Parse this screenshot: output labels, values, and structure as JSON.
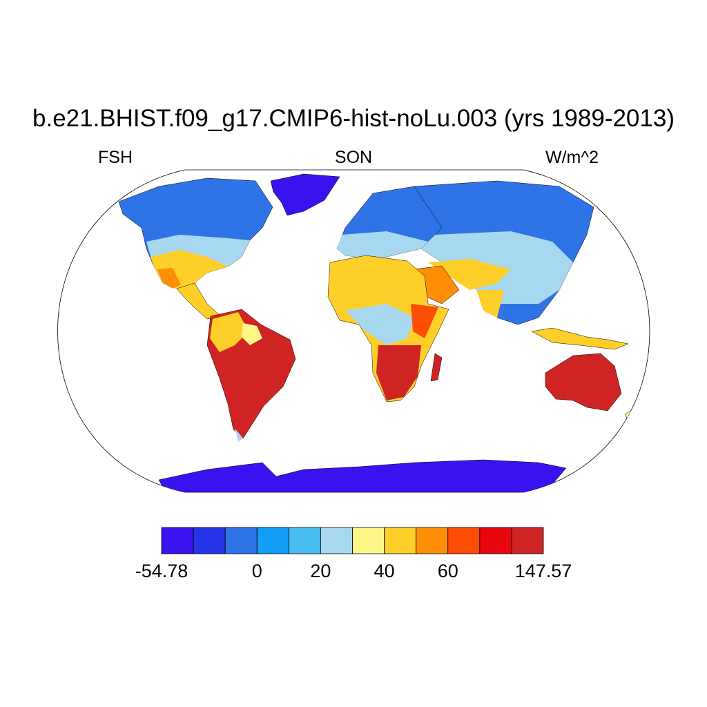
{
  "title": "b.e21.BHIST.f09_g17.CMIP6-hist-noLu.003 (yrs 1989-2013)",
  "subtitle_left": "FSH",
  "subtitle_center": "SON",
  "subtitle_right": "W/m^2",
  "colorbar": {
    "colors": [
      "#3a12f0",
      "#2434e6",
      "#2f74e6",
      "#129df7",
      "#48bdf0",
      "#a8d8f0",
      "#fff68a",
      "#fdcf28",
      "#fd8e05",
      "#fd4d05",
      "#e8070d",
      "#d02424"
    ],
    "tick_labels": [
      "-54.78",
      "0",
      "20",
      "40",
      "60",
      "147.57"
    ],
    "tick_index": [
      0,
      3,
      5,
      7,
      9,
      12
    ]
  }
}
